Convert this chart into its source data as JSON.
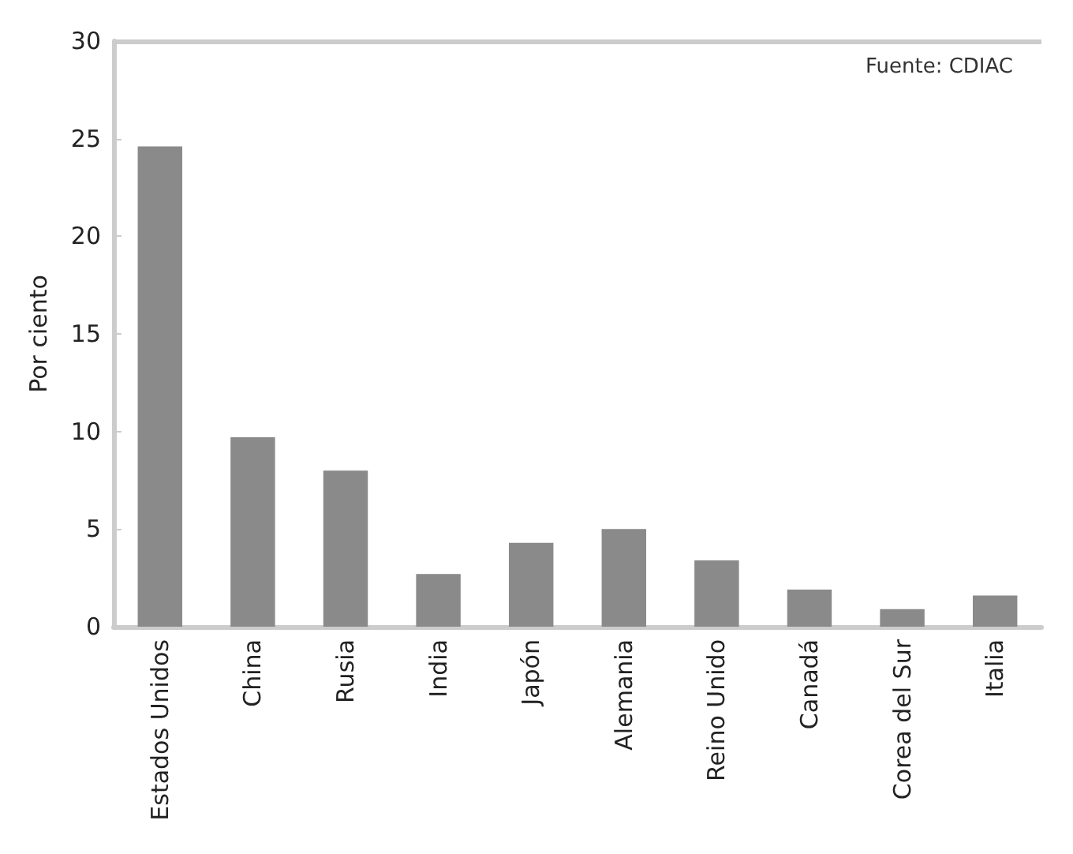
{
  "chart_data": {
    "type": "bar",
    "ylabel": "Por ciento",
    "annotations": [
      "Fuente: CDIAC"
    ],
    "categories": [
      "Estados Unidos",
      "China",
      "Rusia",
      "India",
      "Japón",
      "Alemania",
      "Reino Unido",
      "Canadá",
      "Corea del Sur",
      "Italia"
    ],
    "values": [
      24.6,
      9.7,
      8.0,
      2.7,
      4.3,
      5.0,
      3.4,
      1.9,
      0.9,
      1.6
    ],
    "color": "#8a8a8a",
    "ylim": [
      0,
      30
    ],
    "yticks": [
      0,
      5,
      10,
      15,
      20,
      25,
      30
    ],
    "grid": false
  }
}
